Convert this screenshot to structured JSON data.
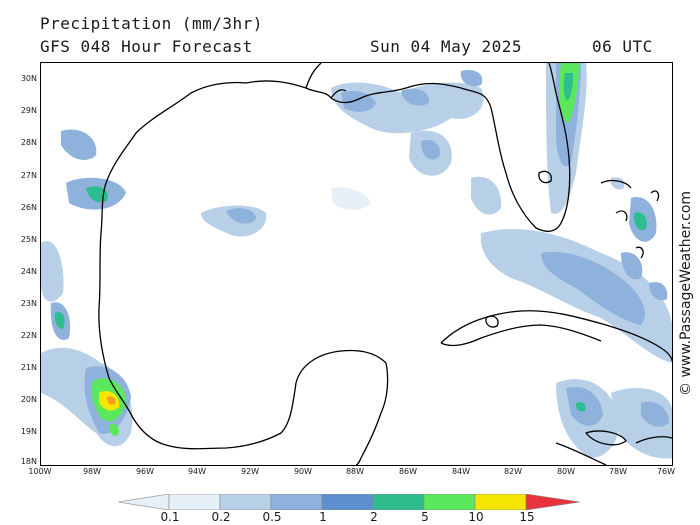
{
  "header": {
    "title": "Precipitation (mm/3hr)",
    "subtitle": "GFS 048 Hour Forecast",
    "date": "Sun 04 May 2025",
    "hour": "06 UTC"
  },
  "credit": "© www.PassageWeather.com",
  "latitudes": [
    "30N",
    "29N",
    "28N",
    "27N",
    "26N",
    "25N",
    "24N",
    "23N",
    "22N",
    "21N",
    "20N",
    "19N",
    "18N"
  ],
  "longitudes": [
    "100W",
    "98W",
    "96W",
    "94W",
    "92W",
    "90W",
    "88W",
    "86W",
    "84W",
    "82W",
    "80W",
    "78W",
    "76W"
  ],
  "legend": {
    "labels": [
      "0.1",
      "0.2",
      "0.5",
      "1",
      "2",
      "5",
      "10",
      "15"
    ],
    "colors": [
      "#e6f0f8",
      "#b8cfe8",
      "#8eb2dc",
      "#5f8fce",
      "#2dbd8f",
      "#5ce85c",
      "#f5e600",
      "#f79a1e",
      "#e8333d"
    ]
  },
  "colors": {
    "level1": "#b8cfe8",
    "level2": "#8eb2dc",
    "level3": "#5f8fce",
    "level4": "#2dbd8f",
    "level5": "#5ce85c",
    "level6": "#f5e600",
    "level7": "#f79a1e"
  }
}
